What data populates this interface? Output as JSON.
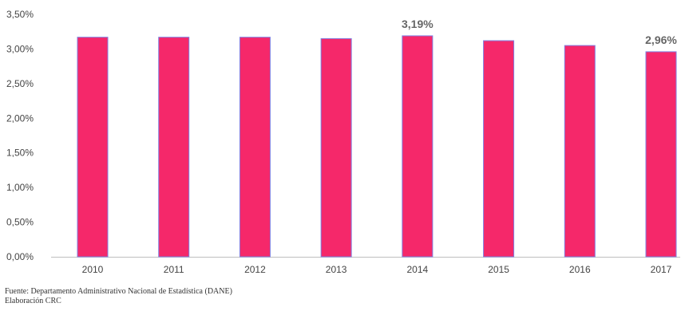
{
  "chart_data": {
    "type": "bar",
    "categories": [
      "2010",
      "2011",
      "2012",
      "2013",
      "2014",
      "2015",
      "2016",
      "2017"
    ],
    "values": [
      3.17,
      3.17,
      3.17,
      3.15,
      3.19,
      3.12,
      3.05,
      2.96
    ],
    "y_ticks": [
      "0,00%",
      "0,50%",
      "1,00%",
      "1,50%",
      "2,00%",
      "2,50%",
      "3,00%",
      "3,50%"
    ],
    "ylim": [
      0,
      3.5
    ],
    "data_labels": [
      {
        "category": "2014",
        "text": "3,19%"
      },
      {
        "category": "2017",
        "text": "2,96%"
      }
    ],
    "grid": false,
    "legend": "none",
    "colors": {
      "bar_fill": "#F5286A",
      "bar_edge": "#7F7FE0",
      "axis": "#BFBFBF"
    }
  },
  "footer": {
    "source": "Fuente: Departamento Administrativo Nacional de Estadística (DANE)",
    "credit": "Elaboración CRC"
  }
}
